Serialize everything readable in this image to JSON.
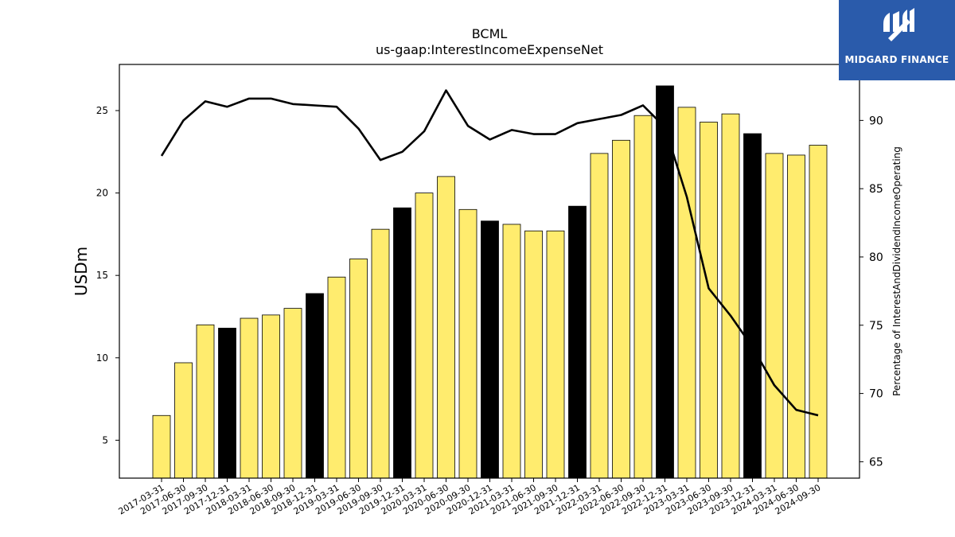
{
  "colors": {
    "bar_normal": "#ffec6e",
    "bar_q4": "#000000",
    "bar_edge": "#000000",
    "line": "#000000",
    "logo_bg": "#2a5bab",
    "logo_fg": "#ffffff"
  },
  "logo": {
    "text": "MIDGARD FINANCE"
  },
  "chart_data": {
    "type": "bar",
    "title": "BCML",
    "subtitle": "us-gaap:InterestIncomeExpenseNet",
    "ylabel": "USDm",
    "y2label": "Percentage of InterestAndDividendIncomeOperating",
    "ylim": [
      2.7,
      27.8
    ],
    "y2lim": [
      63.8,
      94.1
    ],
    "yticks": [
      5,
      10,
      15,
      20,
      25
    ],
    "y2ticks": [
      65,
      70,
      75,
      80,
      85,
      90
    ],
    "grid": false,
    "categories": [
      "2017-03-31",
      "2017-06-30",
      "2017-09-30",
      "2017-12-31",
      "2018-03-31",
      "2018-06-30",
      "2018-09-30",
      "2018-12-31",
      "2019-03-31",
      "2019-06-30",
      "2019-09-30",
      "2019-12-31",
      "2020-03-31",
      "2020-06-30",
      "2020-09-30",
      "2020-12-31",
      "2021-03-31",
      "2021-06-30",
      "2021-09-30",
      "2021-12-31",
      "2022-03-31",
      "2022-06-30",
      "2022-09-30",
      "2022-12-31",
      "2023-03-31",
      "2023-06-30",
      "2023-09-30",
      "2023-12-31",
      "2024-03-31",
      "2024-06-30",
      "2024-09-30"
    ],
    "series": [
      {
        "type": "bar",
        "axis": "left",
        "values": [
          6.5,
          9.7,
          12.0,
          11.8,
          12.4,
          12.6,
          13.0,
          13.9,
          14.9,
          16.0,
          17.8,
          19.1,
          20.0,
          21.0,
          19.0,
          18.3,
          18.1,
          17.7,
          17.7,
          19.2,
          22.4,
          23.2,
          24.7,
          26.5,
          25.2,
          24.3,
          24.8,
          23.6,
          22.4,
          22.3,
          22.9
        ],
        "highlight": [
          false,
          false,
          false,
          true,
          false,
          false,
          false,
          true,
          false,
          false,
          false,
          true,
          false,
          false,
          false,
          true,
          false,
          false,
          false,
          true,
          false,
          false,
          false,
          true,
          false,
          false,
          false,
          true,
          false,
          false,
          false
        ]
      },
      {
        "type": "line",
        "axis": "right",
        "values": [
          87.4,
          90.0,
          91.4,
          91.0,
          91.6,
          91.6,
          91.2,
          91.1,
          91.0,
          89.4,
          87.1,
          87.7,
          89.2,
          92.2,
          89.6,
          88.6,
          89.3,
          89.0,
          89.0,
          89.8,
          90.1,
          90.4,
          91.1,
          89.5,
          84.4,
          77.7,
          75.7,
          73.4,
          70.6,
          68.8,
          68.4
        ]
      }
    ]
  }
}
